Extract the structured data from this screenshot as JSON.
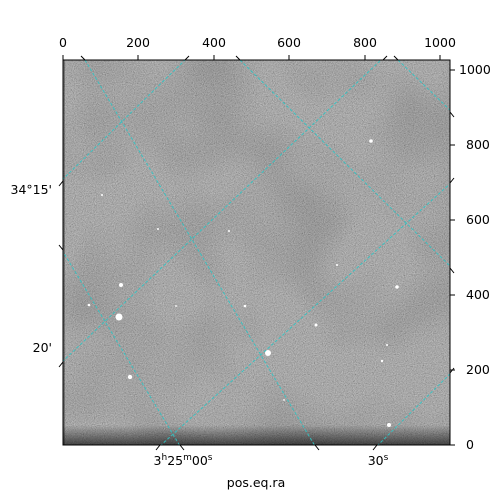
{
  "figure": {
    "xlabel": "pos.eq.ra",
    "top_ticks": [
      "0",
      "200",
      "400",
      "600",
      "800",
      "1000"
    ],
    "right_ticks": [
      "1000",
      "800",
      "600",
      "400",
      "200",
      "0"
    ],
    "ra_labels": [
      {
        "h": "3",
        "hs": "h",
        "m": "25",
        "ms": "m",
        "s": "00",
        "ss": "s"
      },
      {
        "s": "30",
        "ss": "s"
      }
    ],
    "dec_labels": [
      "34°15'",
      "20'"
    ],
    "colors": {
      "grid": "#2fc4c4",
      "image_base": "#6c6c6c",
      "background": "#ffffff"
    }
  }
}
